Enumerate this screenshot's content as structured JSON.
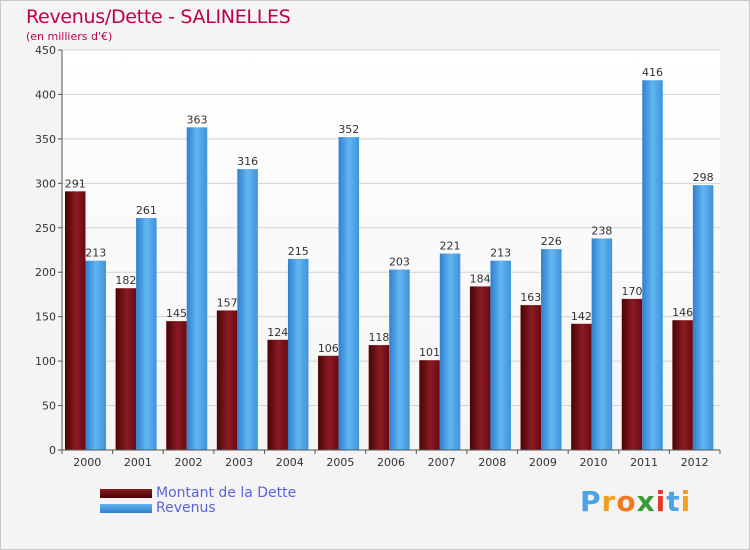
{
  "chart_data": {
    "type": "bar",
    "title": "Revenus/Dette - SALINELLES",
    "subtitle": "(en milliers d'€)",
    "categories": [
      "2000",
      "2001",
      "2002",
      "2003",
      "2004",
      "2005",
      "2006",
      "2007",
      "2008",
      "2009",
      "2010",
      "2011",
      "2012"
    ],
    "series": [
      {
        "name": "Montant de la Dette",
        "color": "#7a1218",
        "values": [
          291,
          182,
          145,
          157,
          124,
          106,
          118,
          101,
          184,
          163,
          142,
          170,
          146
        ]
      },
      {
        "name": "Revenus",
        "color": "#4ea3e6",
        "values": [
          213,
          261,
          363,
          316,
          215,
          352,
          203,
          221,
          213,
          226,
          238,
          416,
          298
        ]
      }
    ],
    "ylim": [
      0,
      450
    ],
    "yticks": [
      0,
      50,
      100,
      150,
      200,
      250,
      300,
      350,
      400,
      450
    ],
    "grid": true,
    "legend": "bottom-left"
  },
  "brand": {
    "letters": [
      "P",
      "r",
      "o",
      "x",
      "i",
      "t",
      "i"
    ],
    "colors": [
      "#4ea3e6",
      "#f0a020",
      "#f07a20",
      "#3a9a3a",
      "#e23b2e",
      "#4ea3e6",
      "#f0a020"
    ]
  }
}
